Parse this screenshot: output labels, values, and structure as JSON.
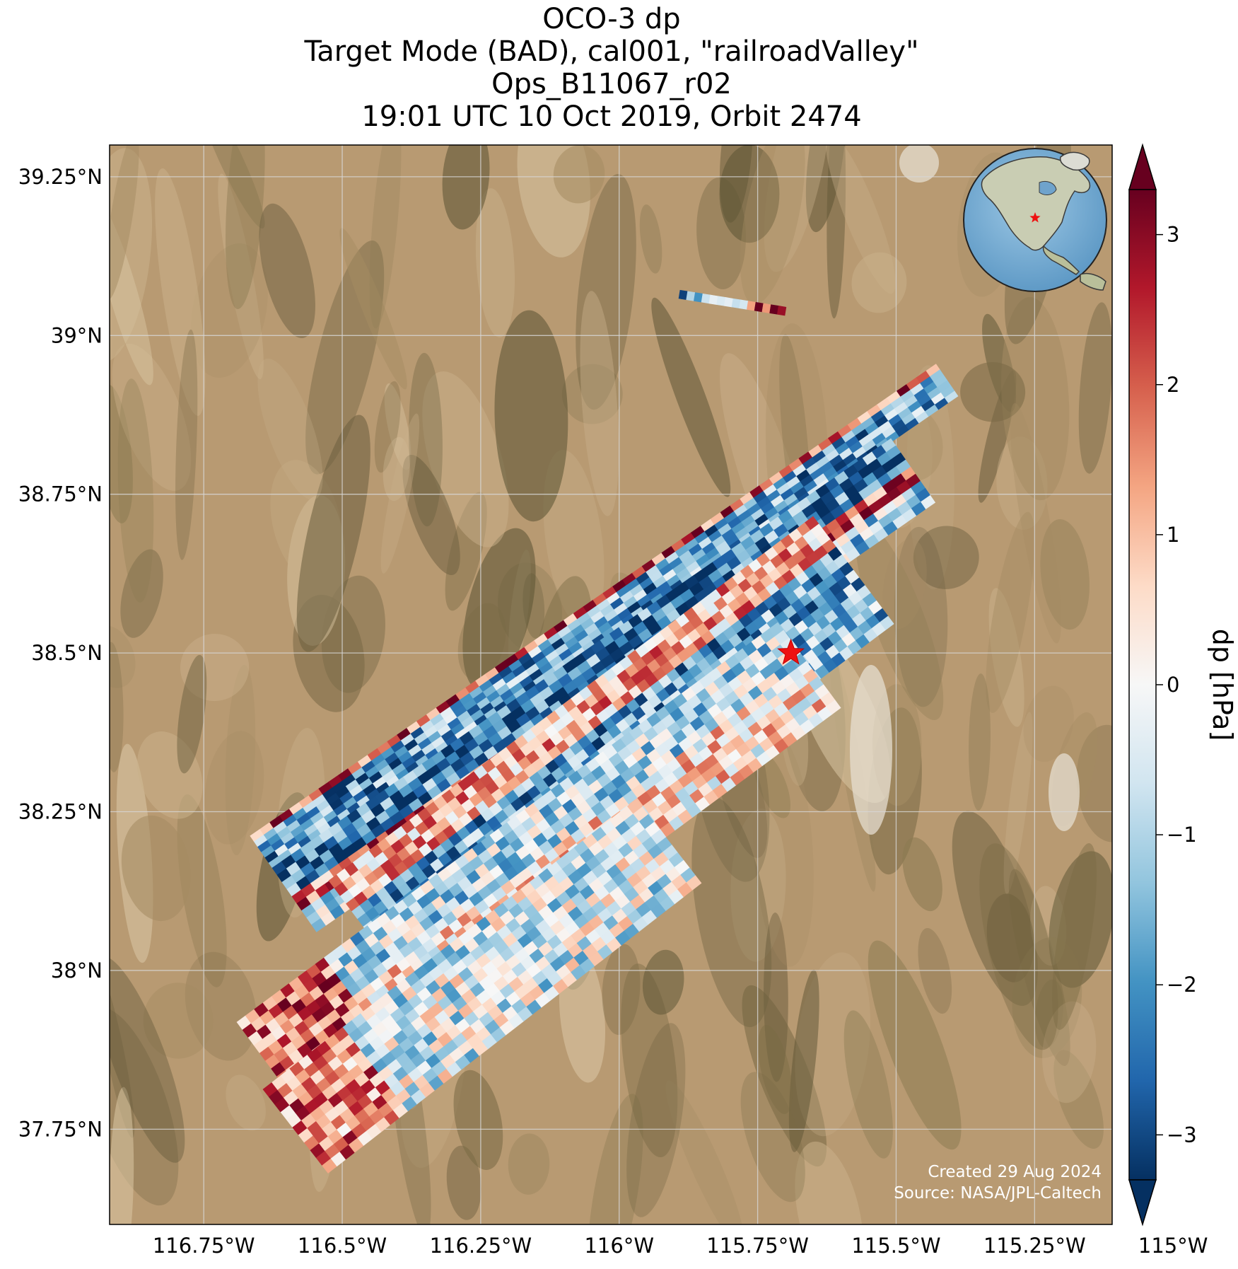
{
  "title": {
    "line1": "OCO-3 dp",
    "line2": "Target Mode (BAD), cal001, \"railroadValley\"",
    "line3": "Ops_B11067_r02",
    "line4": "19:01 UTC 10 Oct 2019, Orbit 2474"
  },
  "map": {
    "lon_range": [
      -116.92,
      -115.11
    ],
    "lat_range": [
      37.6,
      39.3
    ],
    "lat_ticks": [
      {
        "value": 39.25,
        "label": "39.25°N"
      },
      {
        "value": 39.0,
        "label": "39°N"
      },
      {
        "value": 38.75,
        "label": "38.75°N"
      },
      {
        "value": 38.5,
        "label": "38.5°N"
      },
      {
        "value": 38.25,
        "label": "38.25°N"
      },
      {
        "value": 38.0,
        "label": "38°N"
      },
      {
        "value": 37.75,
        "label": "37.75°N"
      }
    ],
    "lon_ticks": [
      {
        "value": -116.75,
        "label": "116.75°W"
      },
      {
        "value": -116.5,
        "label": "116.5°W"
      },
      {
        "value": -116.25,
        "label": "116.25°W"
      },
      {
        "value": -116.0,
        "label": "116°W"
      },
      {
        "value": -115.75,
        "label": "115.75°W"
      },
      {
        "value": -115.5,
        "label": "115.5°W"
      },
      {
        "value": -115.25,
        "label": "115.25°W"
      },
      {
        "value": -115.0,
        "label": "115°W"
      }
    ],
    "target": {
      "lon": -115.69,
      "lat": 38.5
    },
    "grid": true,
    "basemap": "satellite-desert",
    "inset": "globe-north-america",
    "credit_line1": "Created 29 Aug 2024",
    "credit_line2": "Source: NASA/JPL-Caltech"
  },
  "colorbar": {
    "label": "dp [hPa]",
    "vmin": -3.3,
    "vmax": 3.3,
    "ticks": [
      {
        "value": 3,
        "label": "3"
      },
      {
        "value": 2,
        "label": "2"
      },
      {
        "value": 1,
        "label": "1"
      },
      {
        "value": 0,
        "label": "0"
      },
      {
        "value": -1,
        "label": "−1"
      },
      {
        "value": -2,
        "label": "−2"
      },
      {
        "value": -3,
        "label": "−3"
      }
    ],
    "colormap": "RdBu_r",
    "extend": "both"
  }
}
